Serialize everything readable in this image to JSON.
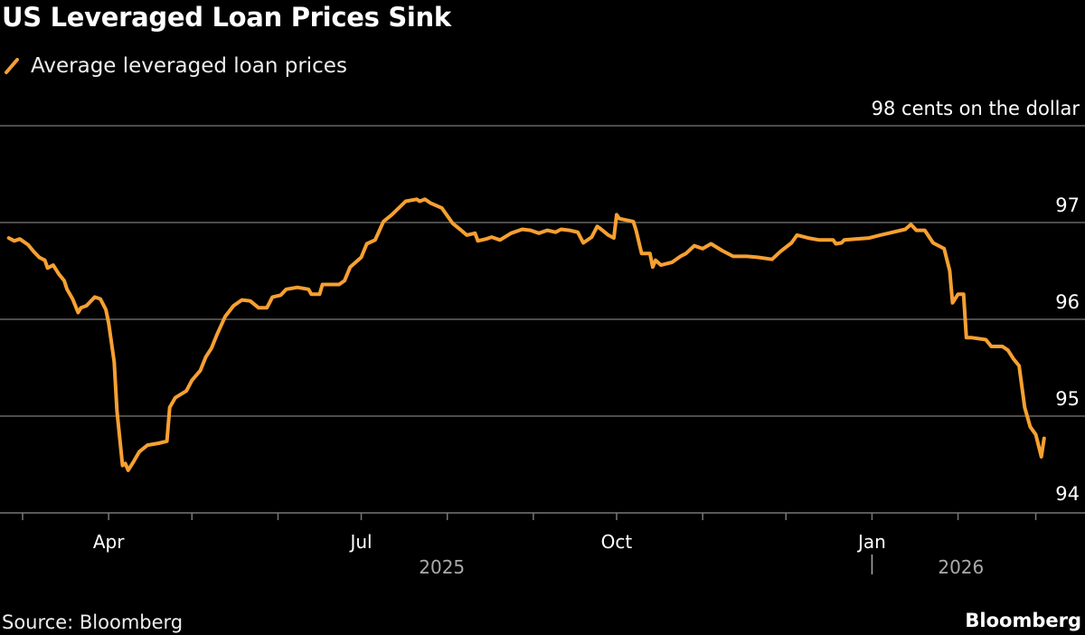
{
  "title": "US Leveraged Loan Prices Sink",
  "source": "Source: Bloomberg",
  "brand": "Bloomberg",
  "colors": {
    "line": "#f7a031",
    "grid": "#666666",
    "background": "#000000"
  },
  "chart_data": {
    "type": "line",
    "title": "US Leveraged Loan Prices Sink",
    "ylabel": "98 cents on the dollar",
    "xlabel": "",
    "x_unit": "days since 2025-03-01",
    "ylim": [
      94,
      98
    ],
    "yticks": [
      {
        "value": 98,
        "label": "98 cents on the dollar"
      },
      {
        "value": 97,
        "label": "97"
      },
      {
        "value": 96,
        "label": "96"
      },
      {
        "value": 95,
        "label": "95"
      },
      {
        "value": 94,
        "label": "94"
      }
    ],
    "xticks": [
      0,
      31,
      61,
      92,
      122,
      153,
      184,
      214,
      245,
      275,
      306,
      337,
      365
    ],
    "xtick_labels": [
      {
        "day": 31,
        "label": "Apr"
      },
      {
        "day": 122,
        "label": "Jul"
      },
      {
        "day": 214,
        "label": "Oct"
      },
      {
        "day": 306,
        "label": "Jan"
      }
    ],
    "year_labels": [
      {
        "day": 153,
        "label": "2025"
      },
      {
        "day": 340,
        "label": "2026"
      }
    ],
    "grid": true,
    "legend_position": "top-left",
    "series": [
      {
        "name": "Average leveraged loan prices",
        "color": "#f7a031",
        "points": [
          [
            -5,
            96.84
          ],
          [
            -3,
            96.81
          ],
          [
            -1,
            96.83
          ],
          [
            2,
            96.77
          ],
          [
            4,
            96.7
          ],
          [
            6,
            96.64
          ],
          [
            8,
            96.61
          ],
          [
            9,
            96.53
          ],
          [
            11,
            96.56
          ],
          [
            13,
            96.47
          ],
          [
            15,
            96.4
          ],
          [
            16,
            96.31
          ],
          [
            18,
            96.21
          ],
          [
            20,
            96.07
          ],
          [
            21,
            96.12
          ],
          [
            23,
            96.14
          ],
          [
            26,
            96.23
          ],
          [
            28,
            96.21
          ],
          [
            30,
            96.1
          ],
          [
            31,
            95.96
          ],
          [
            33,
            95.56
          ],
          [
            34,
            95.05
          ],
          [
            36,
            94.49
          ],
          [
            37,
            94.51
          ],
          [
            38,
            94.44
          ],
          [
            40,
            94.53
          ],
          [
            42,
            94.63
          ],
          [
            45,
            94.7
          ],
          [
            49,
            94.72
          ],
          [
            52,
            94.74
          ],
          [
            53,
            95.09
          ],
          [
            55,
            95.19
          ],
          [
            59,
            95.26
          ],
          [
            61,
            95.37
          ],
          [
            64,
            95.47
          ],
          [
            66,
            95.61
          ],
          [
            68,
            95.7
          ],
          [
            70,
            95.84
          ],
          [
            73,
            96.03
          ],
          [
            76,
            96.14
          ],
          [
            79,
            96.2
          ],
          [
            82,
            96.19
          ],
          [
            85,
            96.12
          ],
          [
            88,
            96.12
          ],
          [
            90,
            96.23
          ],
          [
            93,
            96.25
          ],
          [
            95,
            96.31
          ],
          [
            99,
            96.33
          ],
          [
            103,
            96.31
          ],
          [
            104,
            96.26
          ],
          [
            107,
            96.26
          ],
          [
            108,
            96.36
          ],
          [
            114,
            96.36
          ],
          [
            116,
            96.4
          ],
          [
            118,
            96.54
          ],
          [
            122,
            96.64
          ],
          [
            124,
            96.78
          ],
          [
            127,
            96.82
          ],
          [
            130,
            97.01
          ],
          [
            133,
            97.08
          ],
          [
            138,
            97.22
          ],
          [
            142,
            97.24
          ],
          [
            143,
            97.22
          ],
          [
            145,
            97.24
          ],
          [
            147,
            97.2
          ],
          [
            151,
            97.15
          ],
          [
            155,
            96.99
          ],
          [
            158,
            96.92
          ],
          [
            160,
            96.87
          ],
          [
            163,
            96.89
          ],
          [
            164,
            96.81
          ],
          [
            167,
            96.83
          ],
          [
            169,
            96.85
          ],
          [
            172,
            96.82
          ],
          [
            176,
            96.89
          ],
          [
            180,
            96.93
          ],
          [
            183,
            96.92
          ],
          [
            186,
            96.89
          ],
          [
            189,
            96.92
          ],
          [
            192,
            96.9
          ],
          [
            194,
            96.93
          ],
          [
            197,
            96.92
          ],
          [
            200,
            96.9
          ],
          [
            202,
            96.79
          ],
          [
            205,
            96.85
          ],
          [
            207,
            96.96
          ],
          [
            208,
            96.94
          ],
          [
            211,
            96.87
          ],
          [
            213,
            96.84
          ],
          [
            214,
            97.08
          ],
          [
            215,
            97.04
          ],
          [
            220,
            97.01
          ],
          [
            221,
            96.92
          ],
          [
            223,
            96.68
          ],
          [
            226,
            96.68
          ],
          [
            227,
            96.54
          ],
          [
            228,
            96.61
          ],
          [
            230,
            96.56
          ],
          [
            234,
            96.59
          ],
          [
            237,
            96.65
          ],
          [
            239,
            96.68
          ],
          [
            242,
            96.76
          ],
          [
            245,
            96.73
          ],
          [
            248,
            96.78
          ],
          [
            252,
            96.71
          ],
          [
            256,
            96.65
          ],
          [
            261,
            96.65
          ],
          [
            265,
            96.64
          ],
          [
            270,
            96.62
          ],
          [
            273,
            96.7
          ],
          [
            277,
            96.79
          ],
          [
            279,
            96.87
          ],
          [
            283,
            96.84
          ],
          [
            287,
            96.82
          ],
          [
            292,
            96.82
          ],
          [
            293,
            96.78
          ],
          [
            295,
            96.79
          ],
          [
            296,
            96.82
          ],
          [
            300,
            96.83
          ],
          [
            305,
            96.84
          ],
          [
            309,
            96.87
          ],
          [
            312,
            96.89
          ],
          [
            318,
            96.93
          ],
          [
            320,
            96.98
          ],
          [
            322,
            96.92
          ],
          [
            325,
            96.92
          ],
          [
            328,
            96.79
          ],
          [
            332,
            96.73
          ],
          [
            334,
            96.5
          ],
          [
            335,
            96.17
          ],
          [
            337,
            96.26
          ],
          [
            339,
            96.26
          ],
          [
            340,
            95.81
          ],
          [
            342,
            95.81
          ],
          [
            347,
            95.79
          ],
          [
            349,
            95.72
          ],
          [
            353,
            95.72
          ],
          [
            355,
            95.68
          ],
          [
            357,
            95.59
          ],
          [
            359,
            95.52
          ],
          [
            361,
            95.09
          ],
          [
            363,
            94.89
          ],
          [
            365,
            94.81
          ],
          [
            367,
            94.58
          ],
          [
            368,
            94.77
          ]
        ]
      }
    ]
  }
}
